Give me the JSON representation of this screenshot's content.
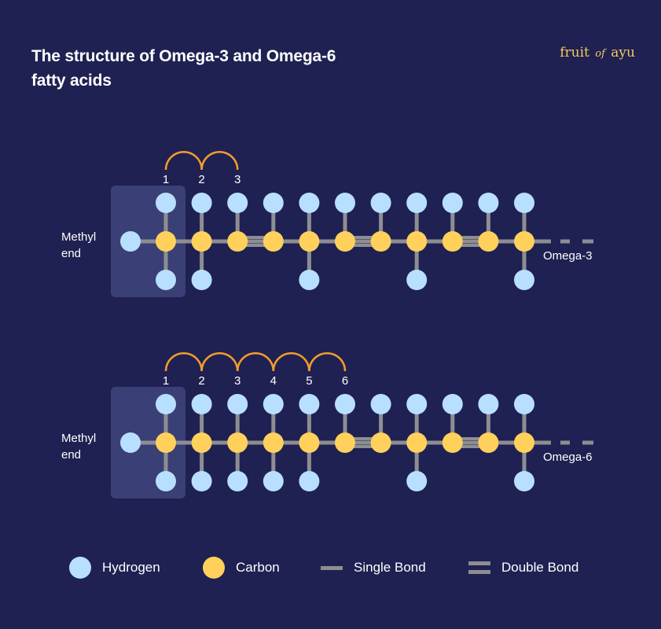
{
  "title": "The structure of Omega-3 and Omega-6 fatty acids",
  "brand": {
    "pre": "fruit",
    "mid": "of",
    "post": "ayu"
  },
  "colors": {
    "background": "#1f2152",
    "hydrogen": "#b8dfff",
    "carbon": "#ffd15c",
    "bond": "#8e8e92",
    "arc": "#f39c2c",
    "methyl_box": "#3a3f75"
  },
  "molecules": [
    {
      "id": "omega-3",
      "methyl_label": [
        "Methyl",
        "end"
      ],
      "end_label": "Omega-3",
      "count_labels": [
        "1",
        "2",
        "3"
      ],
      "carbon_count": 11,
      "double_bond_after_carbon": [
        3,
        6,
        9
      ],
      "bottom_hydrogen_carbons": [
        1,
        2,
        5,
        8,
        11
      ]
    },
    {
      "id": "omega-6",
      "methyl_label": [
        "Methyl",
        "end"
      ],
      "end_label": "Omega-6",
      "count_labels": [
        "1",
        "2",
        "3",
        "4",
        "5",
        "6"
      ],
      "carbon_count": 11,
      "double_bond_after_carbon": [
        6,
        9
      ],
      "bottom_hydrogen_carbons": [
        1,
        2,
        3,
        4,
        5,
        8,
        11
      ]
    }
  ],
  "legend": [
    {
      "key": "hydrogen",
      "label": "Hydrogen",
      "icon": "hydrogen-dot"
    },
    {
      "key": "carbon",
      "label": "Carbon",
      "icon": "carbon-dot"
    },
    {
      "key": "single",
      "label": "Single Bond",
      "icon": "single-bond-line"
    },
    {
      "key": "double",
      "label": "Double Bond",
      "icon": "double-bond-lines"
    }
  ]
}
